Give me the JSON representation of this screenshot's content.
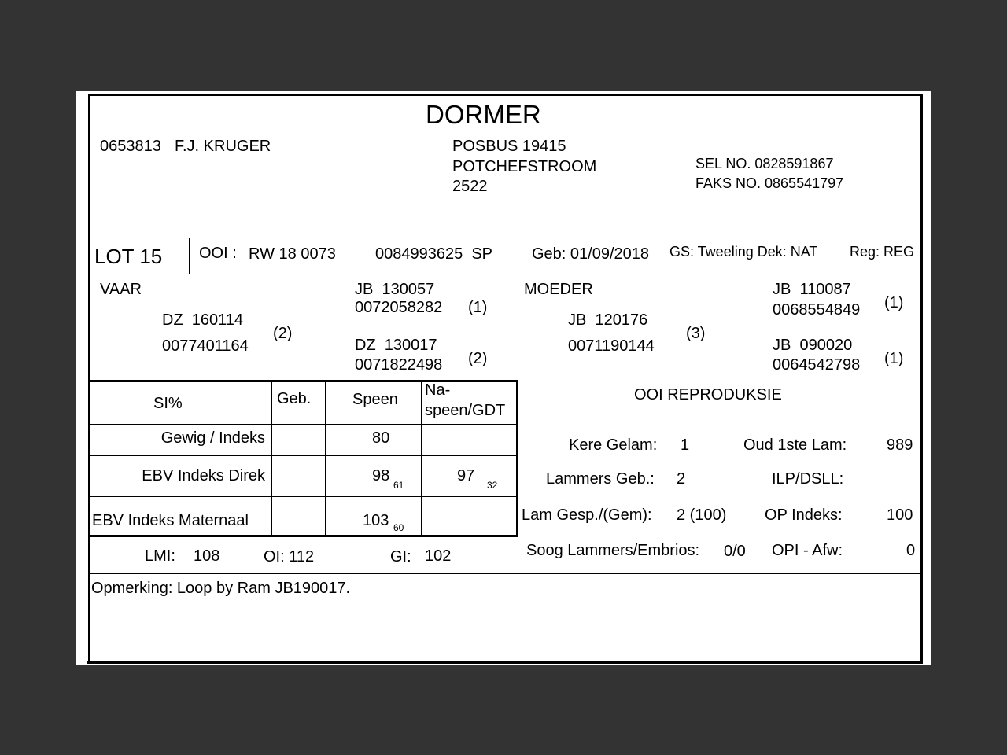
{
  "title": "DORMER",
  "breeder": {
    "number": "0653813",
    "name": "F.J. KRUGER"
  },
  "address": [
    "POSBUS 19415",
    "POTCHEFSTROOM",
    "2522"
  ],
  "contact": {
    "sel": "SEL NO. 0828591867",
    "faks": "FAKS NO. 0865541797"
  },
  "lot": "LOT 15",
  "ooi": {
    "label": "OOI :",
    "id": "RW 18 0073",
    "reg": "0084993625  SP"
  },
  "geb": "Geb: 01/09/2018",
  "gs": "GS: Tweeling Dek: NAT",
  "reg": "Reg: REG",
  "vaar": {
    "label": "VAAR",
    "sire": {
      "id": "DZ  160114",
      "num": "0077401164",
      "n": "(2)"
    },
    "gsire": {
      "id": "JB  130057",
      "num": "0072058282",
      "n": "(1)"
    },
    "gdam": {
      "id": "DZ  130017",
      "num": "0071822498",
      "n": "(2)"
    }
  },
  "moeder": {
    "label": "MOEDER",
    "dam": {
      "id": "JB  120176",
      "num": "0071190144",
      "n": "(3)"
    },
    "gsire": {
      "id": "JB  110087",
      "num": "0068554849",
      "n": "(1)"
    },
    "gdam": {
      "id": "JB  090020",
      "num": "0064542798",
      "n": "(1)"
    }
  },
  "si_table": {
    "headers": [
      "SI%",
      "Geb.",
      "Speen",
      "Na-",
      "speen/GDT"
    ],
    "rows": [
      {
        "label": "Gewig / Indeks",
        "geb": "",
        "speen": "80",
        "speen_sub": "",
        "na": "",
        "na_sub": ""
      },
      {
        "label": "EBV Indeks Direk",
        "geb": "",
        "speen": "98",
        "speen_sub": "61",
        "na": "97",
        "na_sub": "32"
      },
      {
        "label": "EBV Indeks Maternaal",
        "geb": "",
        "speen": "103",
        "speen_sub": "60",
        "na": "",
        "na_sub": ""
      }
    ]
  },
  "indices": {
    "lmi_label": "LMI:",
    "lmi": "108",
    "oi": "OI: 112",
    "gi_label": "GI:",
    "gi": "102"
  },
  "repro": {
    "title": "OOI REPRODUKSIE",
    "kere_label": "Kere Gelam:",
    "kere": "1",
    "oud_label": "Oud 1ste Lam:",
    "oud": "989",
    "lammers_label": "Lammers Geb.:",
    "lammers": "2",
    "ilp_label": "ILP/DSLL:",
    "gesp_label": "Lam Gesp./(Gem):",
    "gesp": "2 (100)",
    "op_label": "OP Indeks:",
    "op": "100",
    "soog_label": "Soog Lammers/Embrios:",
    "soog": "0/0",
    "opi_label": "OPI - Afw:",
    "opi": "0"
  },
  "remark": "Opmerking: Loop by Ram JB190017."
}
